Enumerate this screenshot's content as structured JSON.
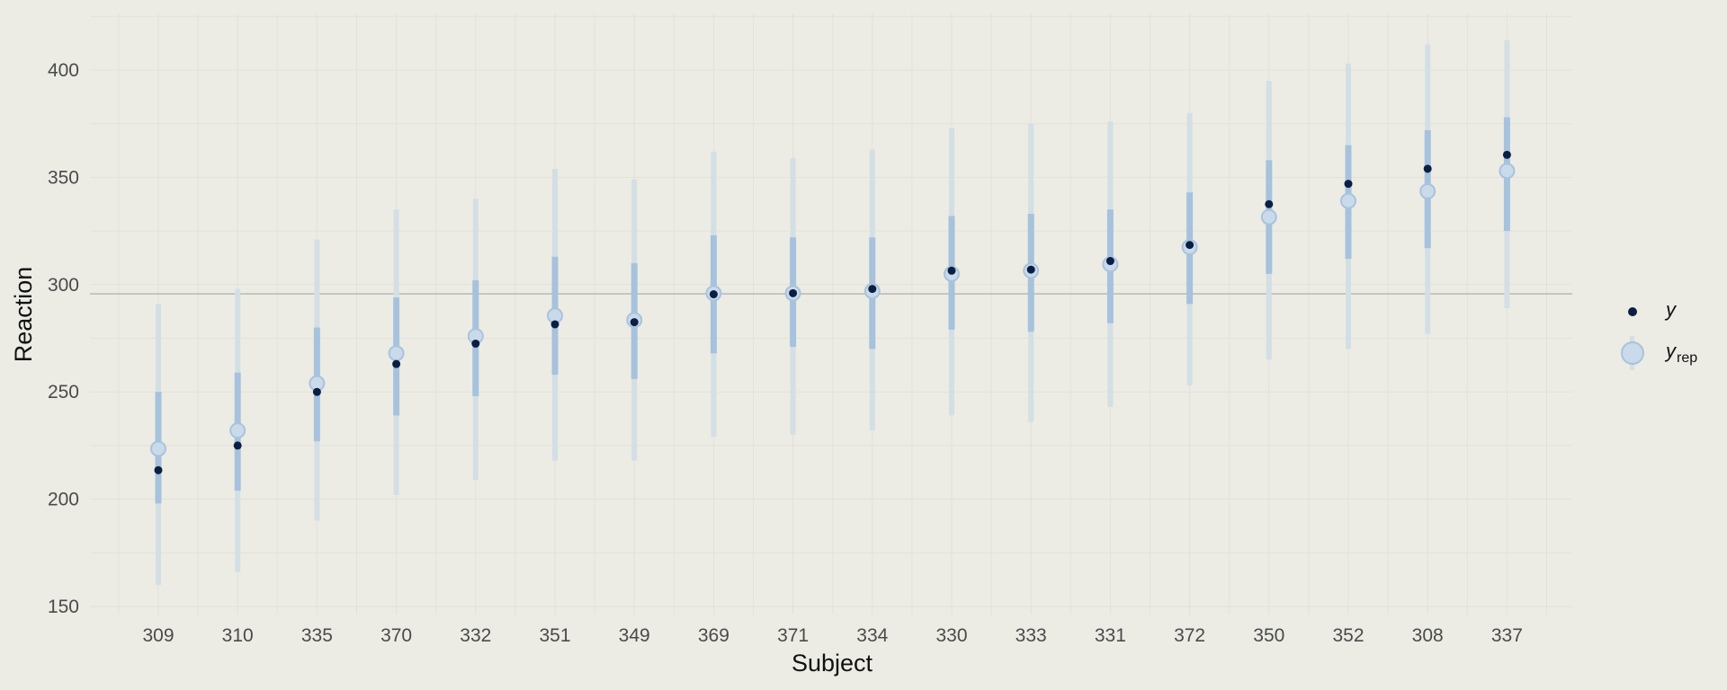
{
  "chart_data": {
    "type": "scatter",
    "title": "",
    "xlabel": "Subject",
    "ylabel": "Reaction",
    "ylim": [
      145,
      425
    ],
    "yticks": [
      150,
      200,
      250,
      300,
      350,
      400
    ],
    "reference_line": 295.7,
    "grid": true,
    "legend_position": "right",
    "legend": [
      {
        "key": "y",
        "label": "y",
        "sub": ""
      },
      {
        "key": "yrep",
        "label": "y",
        "sub": "rep"
      }
    ],
    "categories": [
      "309",
      "310",
      "335",
      "370",
      "332",
      "351",
      "349",
      "369",
      "371",
      "334",
      "330",
      "333",
      "331",
      "372",
      "350",
      "352",
      "308",
      "337"
    ],
    "series": [
      {
        "name": "y",
        "values": [
          213.5,
          225,
          250,
          263,
          272.5,
          281.5,
          282.5,
          295.5,
          296,
          298,
          306.5,
          307,
          311,
          318.5,
          337.5,
          347,
          354,
          360.5
        ]
      },
      {
        "name": "y_rep",
        "values": [
          223.5,
          232,
          254,
          268,
          276,
          285.5,
          283.5,
          296,
          296,
          297,
          305,
          306.5,
          309.5,
          317.5,
          331.5,
          339,
          343.5,
          353
        ],
        "inner_interval": [
          [
            198,
            250
          ],
          [
            204,
            259
          ],
          [
            227,
            280
          ],
          [
            239,
            294
          ],
          [
            248,
            302
          ],
          [
            258,
            313
          ],
          [
            256,
            310
          ],
          [
            268,
            323
          ],
          [
            271,
            322
          ],
          [
            270,
            322
          ],
          [
            279,
            332
          ],
          [
            278,
            333
          ],
          [
            282,
            335
          ],
          [
            291,
            343
          ],
          [
            305,
            358
          ],
          [
            312,
            365
          ],
          [
            317,
            372
          ],
          [
            325,
            378
          ]
        ],
        "outer_interval": [
          [
            160,
            291
          ],
          [
            166,
            298
          ],
          [
            190,
            321
          ],
          [
            202,
            335
          ],
          [
            209,
            340
          ],
          [
            218,
            354
          ],
          [
            218,
            349
          ],
          [
            229,
            362
          ],
          [
            230,
            359
          ],
          [
            232,
            363
          ],
          [
            239,
            373
          ],
          [
            236,
            375
          ],
          [
            243,
            376
          ],
          [
            253,
            380
          ],
          [
            265,
            395
          ],
          [
            270,
            403
          ],
          [
            277,
            412
          ],
          [
            289,
            414
          ]
        ]
      }
    ],
    "colors": {
      "background": "#ecece5",
      "grid": "#e2e2da",
      "reference": "#bdbdb8",
      "outer": "#d3dfe4",
      "inner": "#a6c2dc",
      "yrep_fill": "#c9daea",
      "yrep_stroke": "#a9c3dc",
      "y_point": "#0b1f44"
    }
  }
}
